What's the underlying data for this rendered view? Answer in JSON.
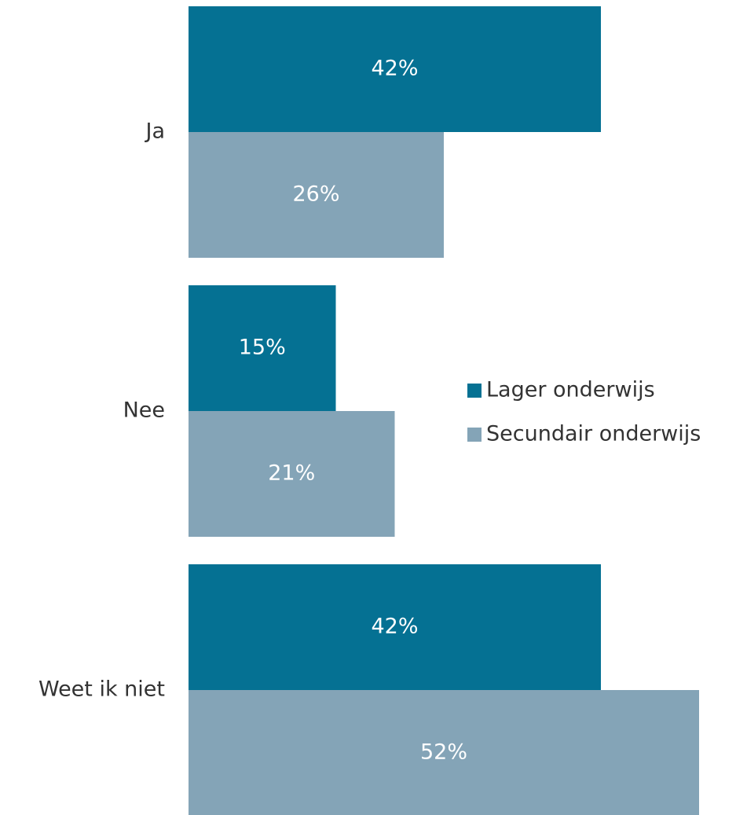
{
  "chart_data": {
    "type": "hbar",
    "categories": [
      "Ja",
      "Nee",
      "Weet ik niet"
    ],
    "series": [
      {
        "name": "Lager onderwijs",
        "color": "#057193",
        "values": [
          42,
          15,
          42
        ],
        "value_labels": [
          "42%",
          "15%",
          "42%"
        ]
      },
      {
        "name": "Secundair onderwijs",
        "color": "#84a4b7",
        "values": [
          26,
          21,
          52
        ],
        "value_labels": [
          "26%",
          "21%",
          "52%"
        ]
      }
    ],
    "legend": "right"
  }
}
